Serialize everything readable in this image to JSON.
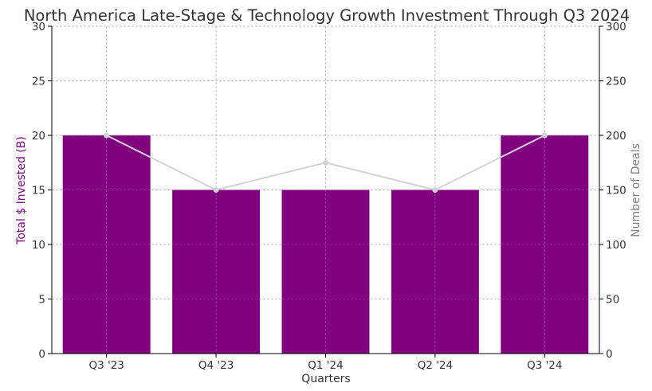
{
  "chart_data": {
    "type": "bar",
    "title": "North America Late-Stage & Technology Growth Investment Through Q3 2024",
    "xlabel": "Quarters",
    "ylabel": "Total $ Invested (B)",
    "y2label": "Number of Deals",
    "categories": [
      "Q3 '23",
      "Q4 '23",
      "Q1 '24",
      "Q2 '24",
      "Q3 '24"
    ],
    "series": [
      {
        "type": "bar",
        "axis": "left",
        "values": [
          20,
          15,
          15,
          15,
          20
        ],
        "color": "#800080"
      },
      {
        "type": "line",
        "axis": "right",
        "values": [
          200,
          150,
          175,
          150,
          200
        ],
        "color": "#d3d3d3"
      }
    ],
    "ylim": [
      0,
      30
    ],
    "y2lim": [
      0,
      300
    ],
    "yticks": [
      "0",
      "5",
      "10",
      "15",
      "20",
      "25",
      "30"
    ],
    "y2ticks": [
      "0",
      "50",
      "100",
      "150",
      "200",
      "250",
      "300"
    ],
    "grid": true,
    "colors": {
      "ylabel": "#800080",
      "y2label": "#808080",
      "text": "#333333",
      "grid": "#b0b0b0"
    }
  }
}
